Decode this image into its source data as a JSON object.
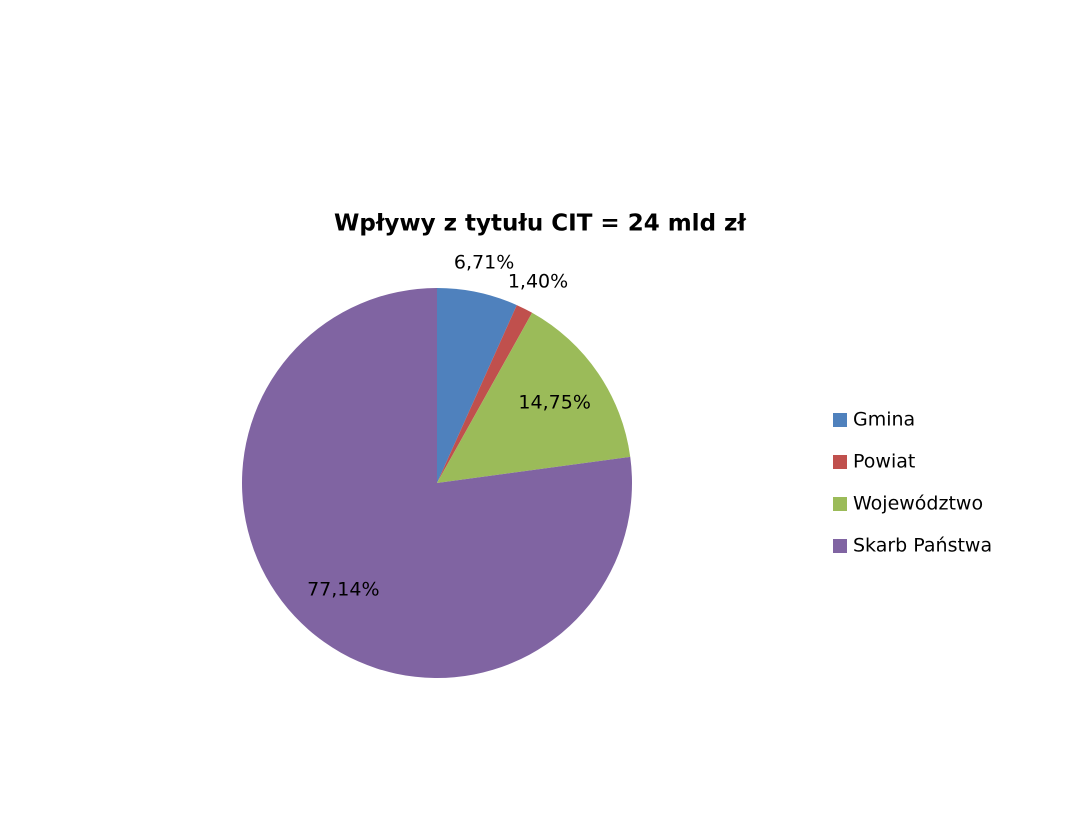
{
  "chart_data": {
    "type": "pie",
    "title": "Wpływy z tytułu CIT = 24 mld zł",
    "categories": [
      "Gmina",
      "Powiat",
      "Województwo",
      "Skarb Państwa"
    ],
    "values": [
      6.71,
      1.4,
      14.75,
      77.14
    ],
    "value_labels": [
      "6,71%",
      "1,40%",
      "14,75%",
      "77,14%"
    ],
    "colors": [
      "#4f81bd",
      "#c0504d",
      "#9bbb59",
      "#8064a2"
    ],
    "legend": "right"
  }
}
